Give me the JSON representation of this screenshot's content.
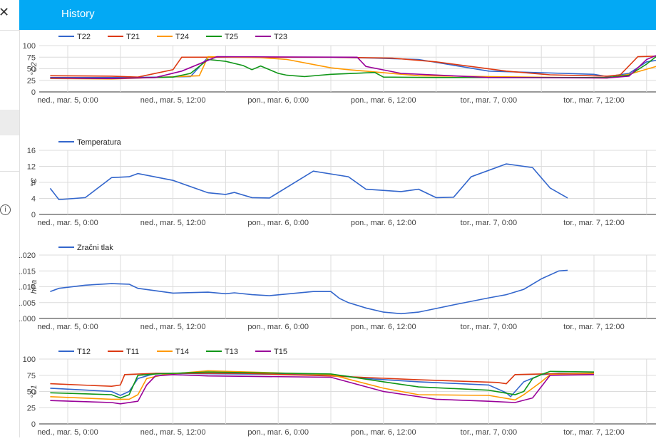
{
  "header": {
    "title": "History"
  },
  "sidebar": {
    "close_icon": "close-icon",
    "info_icon": "info-icon"
  },
  "x_ticks": [
    "ned., mar. 5, 0:00",
    "ned., mar. 5, 12:00",
    "pon., mar. 6, 0:00",
    "pon., mar. 6, 12:00",
    "tor., mar. 7, 0:00",
    "tor., mar. 7, 12:00"
  ],
  "chart_data": [
    {
      "type": "line",
      "ylabel": "°C2",
      "ylim": [
        0,
        100
      ],
      "yticks": [
        "0",
        "25",
        "50",
        "75",
        "100"
      ],
      "series": [
        {
          "name": "T22",
          "color": "#3366cc",
          "x": [
            -2,
            6,
            11,
            14,
            16,
            30,
            35,
            40,
            48,
            60,
            61.5,
            64,
            66,
            70,
            72
          ],
          "y": [
            31,
            31,
            32,
            33,
            75,
            75,
            73,
            70,
            45,
            38,
            33,
            40,
            65,
            76,
            78
          ]
        },
        {
          "name": "T21",
          "color": "#dc3912",
          "x": [
            -2,
            5,
            8,
            12,
            13,
            30,
            37,
            42,
            50,
            55,
            61.5,
            63,
            65,
            70,
            72
          ],
          "y": [
            35,
            34,
            32,
            48,
            75,
            75,
            73,
            65,
            45,
            37,
            34,
            37,
            76,
            79,
            78
          ]
        },
        {
          "name": "T24",
          "color": "#ff9900",
          "x": [
            -2,
            5,
            10,
            15,
            16,
            22,
            25,
            30,
            32,
            40,
            61.5,
            64,
            68,
            69,
            70,
            72
          ],
          "y": [
            29,
            28,
            31,
            35,
            76,
            74,
            70,
            52,
            48,
            35,
            30,
            38,
            60,
            75,
            72,
            72
          ]
        },
        {
          "name": "T25",
          "color": "#109618",
          "x": [
            -2,
            5,
            12,
            14,
            16,
            18,
            20,
            21,
            22,
            24,
            25,
            27,
            30,
            35,
            36,
            42,
            61.5,
            64,
            66,
            67,
            68,
            69,
            70,
            71,
            72
          ],
          "y": [
            30,
            29,
            32,
            40,
            70,
            66,
            57,
            48,
            56,
            40,
            36,
            33,
            38,
            42,
            32,
            31,
            31,
            36,
            60,
            75,
            76,
            62,
            48,
            36,
            33
          ]
        },
        {
          "name": "T23",
          "color": "#990099",
          "x": [
            -2,
            5,
            10,
            13,
            17,
            33,
            34,
            38,
            48,
            61.5,
            64,
            66,
            67,
            72
          ],
          "y": [
            30,
            29,
            31,
            45,
            76,
            75,
            55,
            40,
            31,
            30,
            34,
            70,
            78,
            78
          ]
        }
      ]
    },
    {
      "type": "line",
      "ylabel": "°C",
      "ylim": [
        0,
        16
      ],
      "yticks": [
        "0",
        "4",
        "8",
        "12",
        "16"
      ],
      "series": [
        {
          "name": "Temperatura",
          "color": "#3366cc",
          "x": [
            -2,
            -1,
            2,
            5,
            7,
            8,
            12,
            16,
            18,
            19,
            21,
            23,
            28,
            32,
            34,
            38,
            40,
            42,
            44,
            46,
            50,
            53,
            55,
            57
          ],
          "y": [
            6.5,
            3.7,
            4.2,
            9.2,
            9.4,
            10.2,
            8.5,
            5.4,
            5.0,
            5.5,
            4.2,
            4.1,
            10.8,
            9.4,
            6.3,
            5.7,
            6.3,
            4.2,
            4.3,
            9.4,
            12.6,
            11.7,
            6.6,
            4.1
          ]
        }
      ]
    },
    {
      "type": "line",
      "ylabel": "hPa",
      "ylim": [
        1.0,
        1.02
      ],
      "yticks": [
        "1.000",
        "1.005",
        "1.010",
        "1.015",
        "1.020"
      ],
      "series": [
        {
          "name": "Zračni tlak",
          "color": "#3366cc",
          "x": [
            -2,
            -1,
            2,
            5,
            7,
            8,
            12,
            16,
            18,
            19,
            21,
            23,
            28,
            30,
            31,
            32,
            34,
            36,
            38,
            40,
            44,
            48,
            50,
            52,
            54,
            56,
            57
          ],
          "y": [
            1.0085,
            1.0095,
            1.0105,
            1.011,
            1.0108,
            1.0095,
            1.008,
            1.0083,
            1.0078,
            1.0081,
            1.0075,
            1.0072,
            1.0085,
            1.0085,
            1.0063,
            1.005,
            1.0033,
            1.002,
            1.0015,
            1.002,
            1.0043,
            1.0065,
            1.0075,
            1.0092,
            1.0125,
            1.015,
            1.0152
          ]
        }
      ]
    },
    {
      "type": "line",
      "ylabel": "°C1",
      "ylim": [
        0,
        100
      ],
      "yticks": [
        "0",
        "25",
        "50",
        "75",
        "100"
      ],
      "series": [
        {
          "name": "T12",
          "color": "#3366cc",
          "x": [
            -2,
            5,
            6,
            7,
            8,
            10,
            30,
            34,
            40,
            48,
            50,
            50.5,
            52,
            54,
            56,
            60
          ],
          "y": [
            55,
            50,
            44,
            50,
            70,
            78,
            76,
            70,
            65,
            60,
            48,
            42,
            65,
            76,
            78,
            77
          ]
        },
        {
          "name": "T11",
          "color": "#dc3912",
          "x": [
            -2,
            5,
            6,
            6.5,
            10,
            20,
            30,
            40,
            49,
            50,
            51,
            54,
            60
          ],
          "y": [
            62,
            58,
            60,
            76,
            78,
            78,
            74,
            68,
            64,
            62,
            76,
            77,
            78
          ]
        },
        {
          "name": "T14",
          "color": "#ff9900",
          "x": [
            -2,
            5,
            7,
            8,
            9,
            11,
            16,
            30,
            36,
            40,
            48,
            51,
            52,
            54,
            55,
            60
          ],
          "y": [
            42,
            38,
            38,
            45,
            70,
            76,
            82,
            76,
            55,
            45,
            44,
            37,
            45,
            65,
            76,
            77
          ]
        },
        {
          "name": "T13",
          "color": "#109618",
          "x": [
            -2,
            5,
            6,
            7,
            8,
            10,
            16,
            30,
            36,
            40,
            48,
            51,
            52,
            53,
            54,
            55,
            60
          ],
          "y": [
            48,
            45,
            40,
            45,
            75,
            77,
            80,
            77,
            65,
            57,
            52,
            45,
            50,
            70,
            76,
            81,
            80
          ]
        },
        {
          "name": "T15",
          "color": "#990099",
          "x": [
            -2,
            5,
            6,
            8,
            9,
            10,
            12,
            16,
            30,
            36,
            42,
            48,
            51,
            53,
            55,
            60
          ],
          "y": [
            36,
            33,
            31,
            35,
            60,
            74,
            76,
            74,
            72,
            50,
            38,
            35,
            33,
            40,
            75,
            76
          ]
        }
      ]
    }
  ]
}
